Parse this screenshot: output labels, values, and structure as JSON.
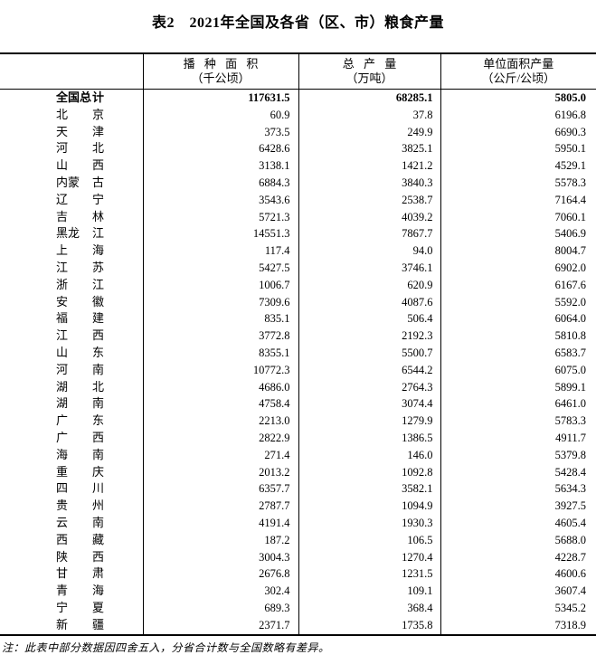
{
  "title": "表2　2021年全国及各省（区、市）粮食产量",
  "colors": {
    "background": "#ffffff",
    "text": "#000000",
    "border": "#000000"
  },
  "table": {
    "columns": [
      {
        "label": "",
        "unit": ""
      },
      {
        "label": "播 种 面 积",
        "unit": "（千公顷）"
      },
      {
        "label": "总 产 量",
        "unit": "（万吨）"
      },
      {
        "label": "单位面积产量",
        "unit": "（公斤/公顷）"
      }
    ],
    "total_row": {
      "name": "全国总计",
      "values": [
        "117631.5",
        "68285.1",
        "5805.0"
      ]
    },
    "rows": [
      {
        "name": "北京",
        "values": [
          "60.9",
          "37.8",
          "6196.8"
        ]
      },
      {
        "name": "天津",
        "values": [
          "373.5",
          "249.9",
          "6690.3"
        ]
      },
      {
        "name": "河北",
        "values": [
          "6428.6",
          "3825.1",
          "5950.1"
        ]
      },
      {
        "name": "山西",
        "values": [
          "3138.1",
          "1421.2",
          "4529.1"
        ]
      },
      {
        "name": "内蒙古",
        "values": [
          "6884.3",
          "3840.3",
          "5578.3"
        ]
      },
      {
        "name": "辽宁",
        "values": [
          "3543.6",
          "2538.7",
          "7164.4"
        ]
      },
      {
        "name": "吉林",
        "values": [
          "5721.3",
          "4039.2",
          "7060.1"
        ]
      },
      {
        "name": "黑龙江",
        "values": [
          "14551.3",
          "7867.7",
          "5406.9"
        ]
      },
      {
        "name": "上海",
        "values": [
          "117.4",
          "94.0",
          "8004.7"
        ]
      },
      {
        "name": "江苏",
        "values": [
          "5427.5",
          "3746.1",
          "6902.0"
        ]
      },
      {
        "name": "浙江",
        "values": [
          "1006.7",
          "620.9",
          "6167.6"
        ]
      },
      {
        "name": "安徽",
        "values": [
          "7309.6",
          "4087.6",
          "5592.0"
        ]
      },
      {
        "name": "福建",
        "values": [
          "835.1",
          "506.4",
          "6064.0"
        ]
      },
      {
        "name": "江西",
        "values": [
          "3772.8",
          "2192.3",
          "5810.8"
        ]
      },
      {
        "name": "山东",
        "values": [
          "8355.1",
          "5500.7",
          "6583.7"
        ]
      },
      {
        "name": "河南",
        "values": [
          "10772.3",
          "6544.2",
          "6075.0"
        ]
      },
      {
        "name": "湖北",
        "values": [
          "4686.0",
          "2764.3",
          "5899.1"
        ]
      },
      {
        "name": "湖南",
        "values": [
          "4758.4",
          "3074.4",
          "6461.0"
        ]
      },
      {
        "name": "广东",
        "values": [
          "2213.0",
          "1279.9",
          "5783.3"
        ]
      },
      {
        "name": "广西",
        "values": [
          "2822.9",
          "1386.5",
          "4911.7"
        ]
      },
      {
        "name": "海南",
        "values": [
          "271.4",
          "146.0",
          "5379.8"
        ]
      },
      {
        "name": "重庆",
        "values": [
          "2013.2",
          "1092.8",
          "5428.4"
        ]
      },
      {
        "name": "四川",
        "values": [
          "6357.7",
          "3582.1",
          "5634.3"
        ]
      },
      {
        "name": "贵州",
        "values": [
          "2787.7",
          "1094.9",
          "3927.5"
        ]
      },
      {
        "name": "云南",
        "values": [
          "4191.4",
          "1930.3",
          "4605.4"
        ]
      },
      {
        "name": "西藏",
        "values": [
          "187.2",
          "106.5",
          "5688.0"
        ]
      },
      {
        "name": "陕西",
        "values": [
          "3004.3",
          "1270.4",
          "4228.7"
        ]
      },
      {
        "name": "甘肃",
        "values": [
          "2676.8",
          "1231.5",
          "4600.6"
        ]
      },
      {
        "name": "青海",
        "values": [
          "302.4",
          "109.1",
          "3607.4"
        ]
      },
      {
        "name": "宁夏",
        "values": [
          "689.3",
          "368.4",
          "5345.2"
        ]
      },
      {
        "name": "新疆",
        "values": [
          "2371.7",
          "1735.8",
          "7318.9"
        ]
      }
    ]
  },
  "note": "注：此表中部分数据因四舍五入，分省合计数与全国数略有差异。"
}
